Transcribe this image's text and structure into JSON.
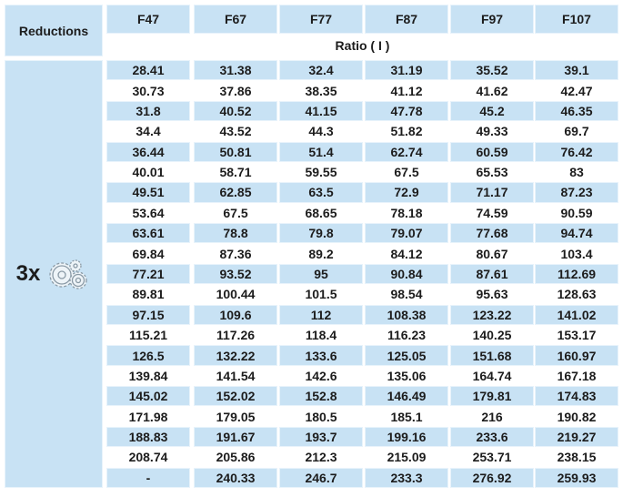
{
  "header": {
    "title": "Reductions",
    "columns": [
      "F47",
      "F67",
      "F77",
      "F87",
      "F97",
      "F107"
    ],
    "subtitle": "Ratio ( I )"
  },
  "group": {
    "label": "3x"
  },
  "table": {
    "rows": [
      [
        "28.41",
        "31.38",
        "32.4",
        "31.19",
        "35.52",
        "39.1"
      ],
      [
        "30.73",
        "37.86",
        "38.35",
        "41.12",
        "41.62",
        "42.47"
      ],
      [
        "31.8",
        "40.52",
        "41.15",
        "47.78",
        "45.2",
        "46.35"
      ],
      [
        "34.4",
        "43.52",
        "44.3",
        "51.82",
        "49.33",
        "69.7"
      ],
      [
        "36.44",
        "50.81",
        "51.4",
        "62.74",
        "60.59",
        "76.42"
      ],
      [
        "40.01",
        "58.71",
        "59.55",
        "67.5",
        "65.53",
        "83"
      ],
      [
        "49.51",
        "62.85",
        "63.5",
        "72.9",
        "71.17",
        "87.23"
      ],
      [
        "53.64",
        "67.5",
        "68.65",
        "78.18",
        "74.59",
        "90.59"
      ],
      [
        "63.61",
        "78.8",
        "79.8",
        "79.07",
        "77.68",
        "94.74"
      ],
      [
        "69.84",
        "87.36",
        "89.2",
        "84.12",
        "80.67",
        "103.4"
      ],
      [
        "77.21",
        "93.52",
        "95",
        "90.84",
        "87.61",
        "112.69"
      ],
      [
        "89.81",
        "100.44",
        "101.5",
        "98.54",
        "95.63",
        "128.63"
      ],
      [
        "97.15",
        "109.6",
        "112",
        "108.38",
        "123.22",
        "141.02"
      ],
      [
        "115.21",
        "117.26",
        "118.4",
        "116.23",
        "140.25",
        "153.17"
      ],
      [
        "126.5",
        "132.22",
        "133.6",
        "125.05",
        "151.68",
        "160.97"
      ],
      [
        "139.84",
        "141.54",
        "142.6",
        "135.06",
        "164.74",
        "167.18"
      ],
      [
        "145.02",
        "152.02",
        "152.8",
        "146.49",
        "179.81",
        "174.83"
      ],
      [
        "171.98",
        "179.05",
        "180.5",
        "185.1",
        "216",
        "190.82"
      ],
      [
        "188.83",
        "191.67",
        "193.7",
        "199.16",
        "233.6",
        "219.27"
      ],
      [
        "208.74",
        "205.86",
        "212.3",
        "215.09",
        "253.71",
        "238.15"
      ],
      [
        "-",
        "240.33",
        "246.7",
        "233.3",
        "276.92",
        "259.93"
      ]
    ]
  }
}
